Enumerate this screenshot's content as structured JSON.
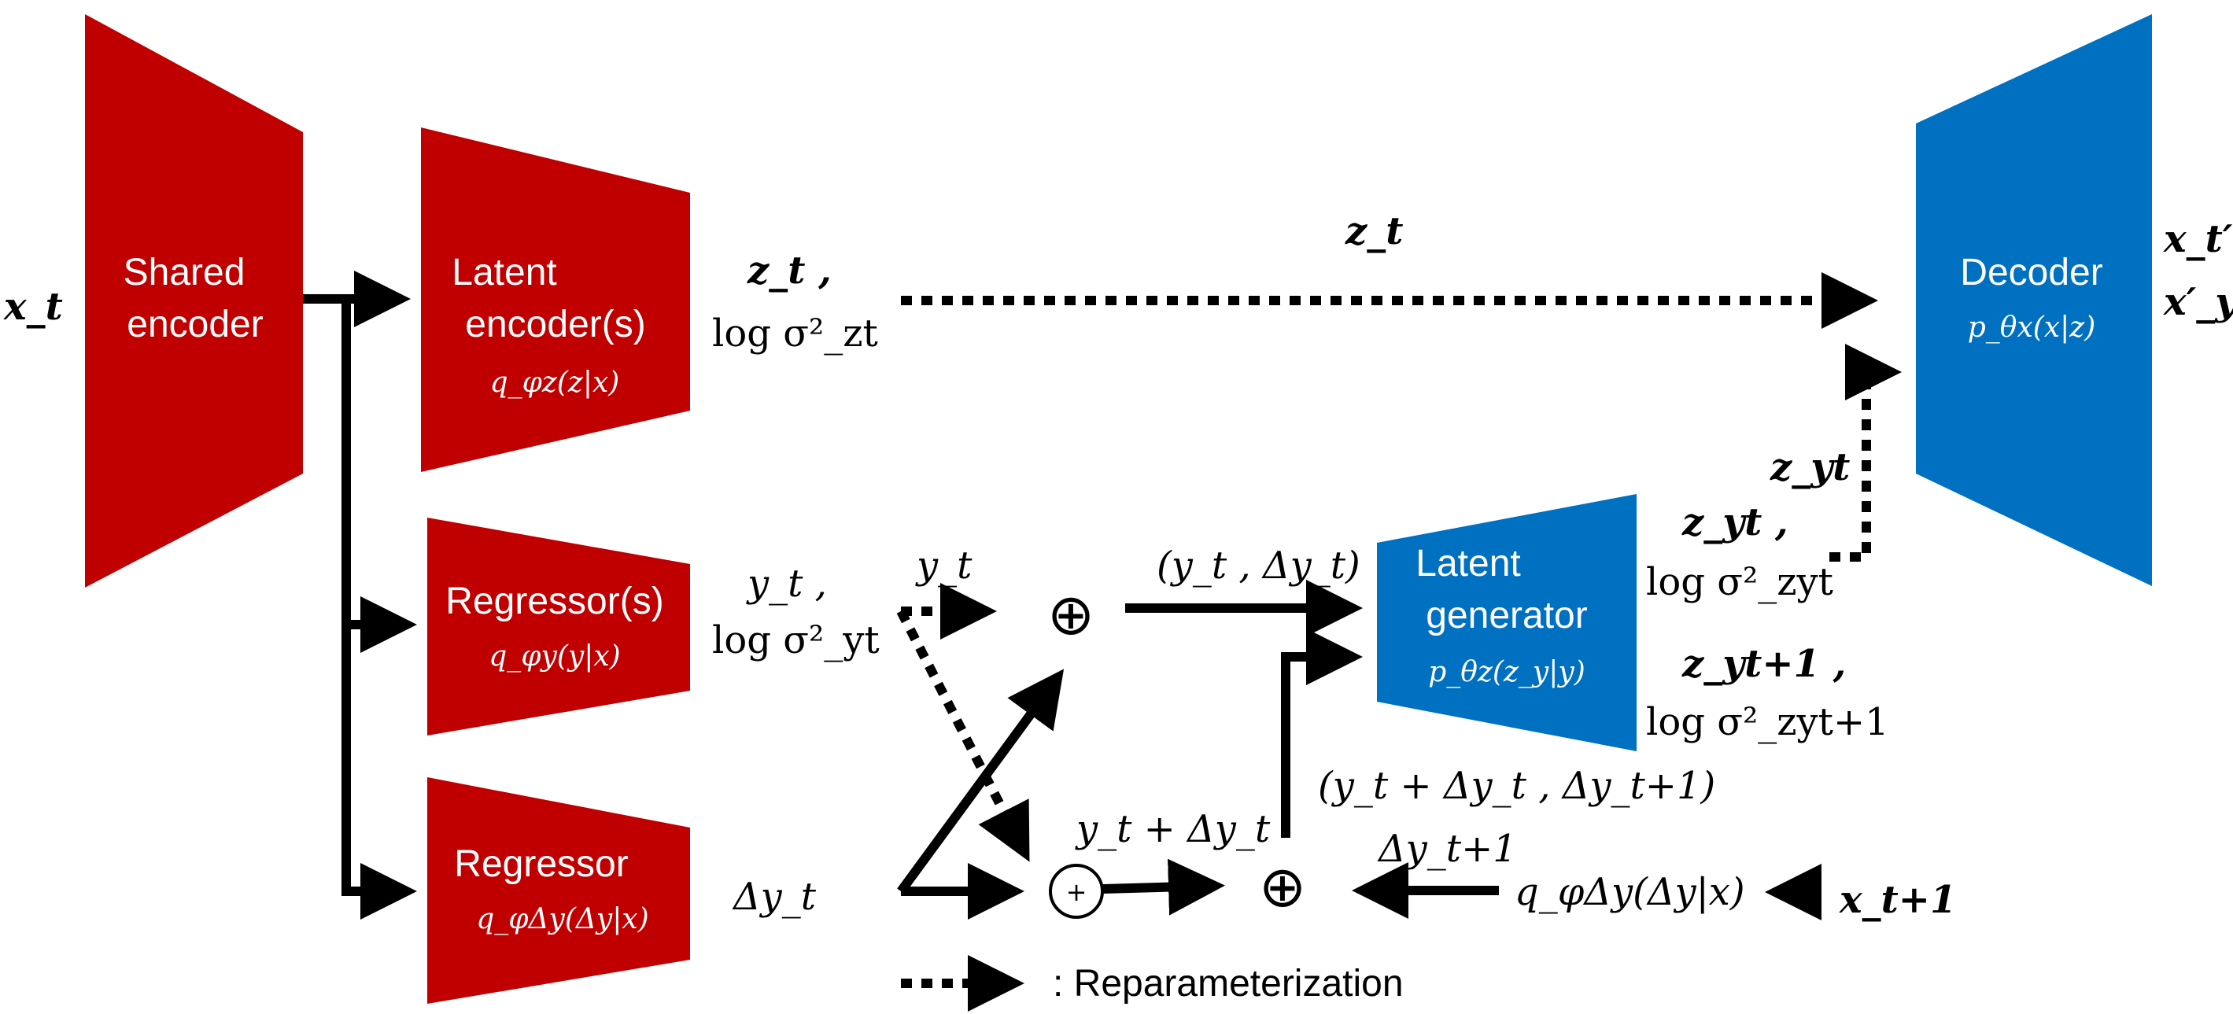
{
  "colors": {
    "encoder_red": "#c00000",
    "decoder_blue": "#0070c0",
    "line": "#000000"
  },
  "blocks": {
    "shared_encoder": {
      "line1": "Shared",
      "line2": "encoder"
    },
    "latent_encoder": {
      "line1": "Latent",
      "line2": "encoder(s)",
      "formula": "q_φz(z|x)"
    },
    "regressor_y": {
      "line1": "Regressor(s)",
      "formula": "q_φy(y|x)"
    },
    "regressor_dy": {
      "line1": "Regressor",
      "formula": "q_φΔy(Δy|x)"
    },
    "decoder": {
      "line1": "Decoder",
      "formula": "p_θx(x|z)"
    },
    "latent_generator": {
      "line1": "Latent",
      "line2": "generator",
      "formula": "p_θz(z_y|y)"
    }
  },
  "labels": {
    "input_x_t": "x_t",
    "input_x_t1": "x_t+1",
    "encoder_out_z": "z_t ,",
    "encoder_out_logsigma_z": "log σ²_zt",
    "dotted_z_t": "z_t",
    "regressor_out_y": "y_t ,",
    "regressor_out_logsigma_y": "log σ²_yt",
    "regressor_out_dy": "Δy_t",
    "y_t_dotted": "y_t",
    "pair_y_dy": "(y_t , Δy_t)",
    "sum_y_dy": "y_t + Δy_t",
    "pair_next": "(y_t + Δy_t , Δy_t+1)",
    "dy_next": "Δy_t+1",
    "q_dy_formula": "q_φΔy(Δy|x)",
    "z_y_t": "z_yt",
    "gen_out_z_yt": "z_yt ,",
    "gen_out_logsigma_yt": "log σ²_zyt",
    "gen_out_z_yt1": "z_yt+1 ,",
    "gen_out_logsigma_yt1": "log σ²_zyt+1",
    "decoder_out_x": "x_t′ ,",
    "decoder_out_xy": "x′_yt",
    "small_plus": "+",
    "oplus": "⊕"
  },
  "legend": {
    "text": ": Reparameterization"
  }
}
